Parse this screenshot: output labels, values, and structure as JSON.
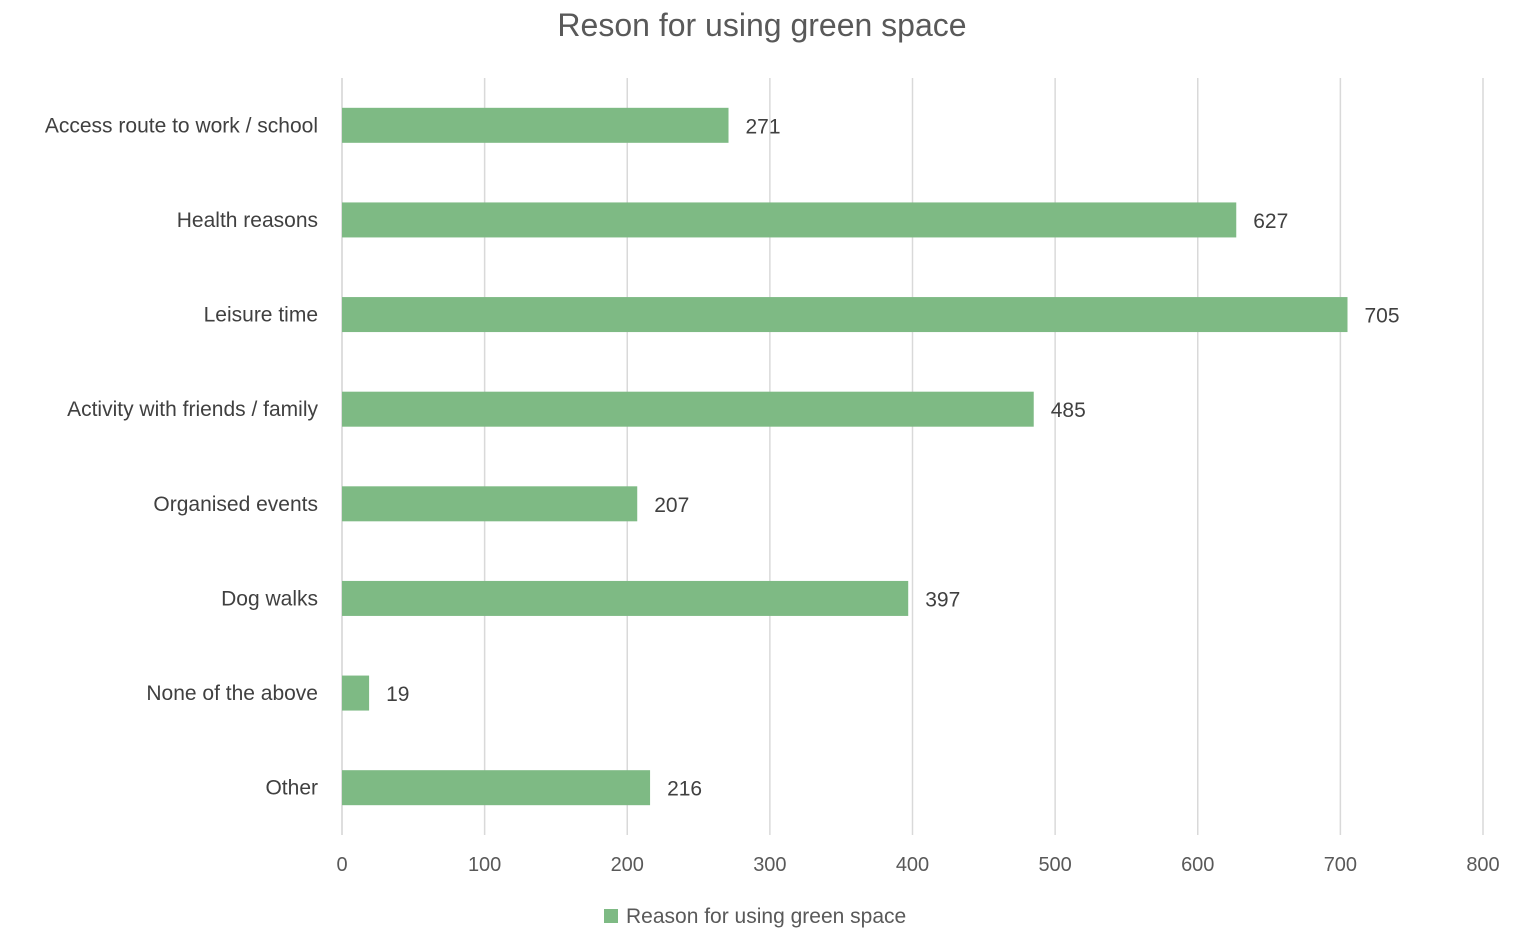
{
  "chart_data": {
    "type": "bar",
    "orientation": "horizontal",
    "title": "Reson for using green space",
    "xlabel": "",
    "ylabel": "",
    "categories": [
      "Access route to work / school",
      "Health reasons",
      "Leisure time",
      "Activity with friends / family",
      "Organised events",
      "Dog walks",
      "None of the above",
      "Other"
    ],
    "series": [
      {
        "name": "Reason for using green space",
        "color": "#7eba84",
        "values": [
          271,
          627,
          705,
          485,
          207,
          397,
          19,
          216
        ]
      }
    ],
    "xlim": [
      0,
      800
    ],
    "xticks": [
      0,
      100,
      200,
      300,
      400,
      500,
      600,
      700,
      800
    ],
    "grid": "vertical",
    "data_labels": true,
    "legend_position": "bottom"
  }
}
